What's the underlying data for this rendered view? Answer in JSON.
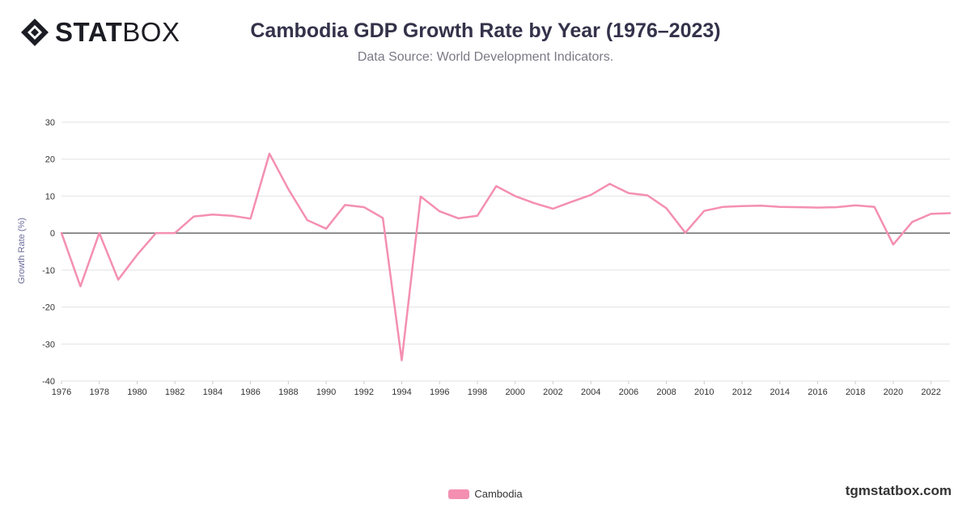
{
  "brand": {
    "logo_bold": "STAT",
    "logo_light": "BOX"
  },
  "watermark": "tgmstatbox.com",
  "chart_data": {
    "type": "line",
    "title": "Cambodia GDP Growth Rate by Year (1976–2023)",
    "subtitle": "Data Source: World Development Indicators.",
    "xlabel": "",
    "ylabel": "Growth Rate (%)",
    "ylim": [
      -40,
      30
    ],
    "yticks": [
      30,
      20,
      10,
      0,
      -10,
      -20,
      -30,
      -40
    ],
    "xticks": [
      "1976",
      "1978",
      "1980",
      "1982",
      "1984",
      "1986",
      "1988",
      "1990",
      "1992",
      "1994",
      "1996",
      "1998",
      "2000",
      "2002",
      "2004",
      "2006",
      "2008",
      "2010",
      "2012",
      "2014",
      "2016",
      "2018",
      "2020",
      "2022"
    ],
    "grid": true,
    "legend_position": "bottom",
    "series": [
      {
        "name": "Cambodia",
        "color": "#f48fb1",
        "x": [
          1976,
          1977,
          1978,
          1979,
          1980,
          1981,
          1982,
          1983,
          1984,
          1985,
          1986,
          1987,
          1988,
          1989,
          1990,
          1991,
          1992,
          1993,
          1994,
          1995,
          1996,
          1997,
          1998,
          1999,
          2000,
          2001,
          2002,
          2003,
          2004,
          2005,
          2006,
          2007,
          2008,
          2009,
          2010,
          2011,
          2012,
          2013,
          2014,
          2015,
          2016,
          2017,
          2018,
          2019,
          2020,
          2021,
          2022,
          2023
        ],
        "values": [
          0,
          -14.4,
          0,
          -12.6,
          -5.9,
          0,
          0,
          4.5,
          5.0,
          4.7,
          3.9,
          21.5,
          11.9,
          3.5,
          1.2,
          7.6,
          7.0,
          4.1,
          -34.4,
          9.9,
          5.9,
          4.0,
          4.7,
          12.7,
          10.0,
          8.1,
          6.6,
          8.5,
          10.3,
          13.3,
          10.8,
          10.2,
          6.7,
          0.1,
          6.0,
          7.1,
          7.3,
          7.4,
          7.1,
          7.0,
          6.9,
          7.0,
          7.5,
          7.1,
          -3.1,
          3.0,
          5.2,
          5.4
        ]
      }
    ]
  }
}
